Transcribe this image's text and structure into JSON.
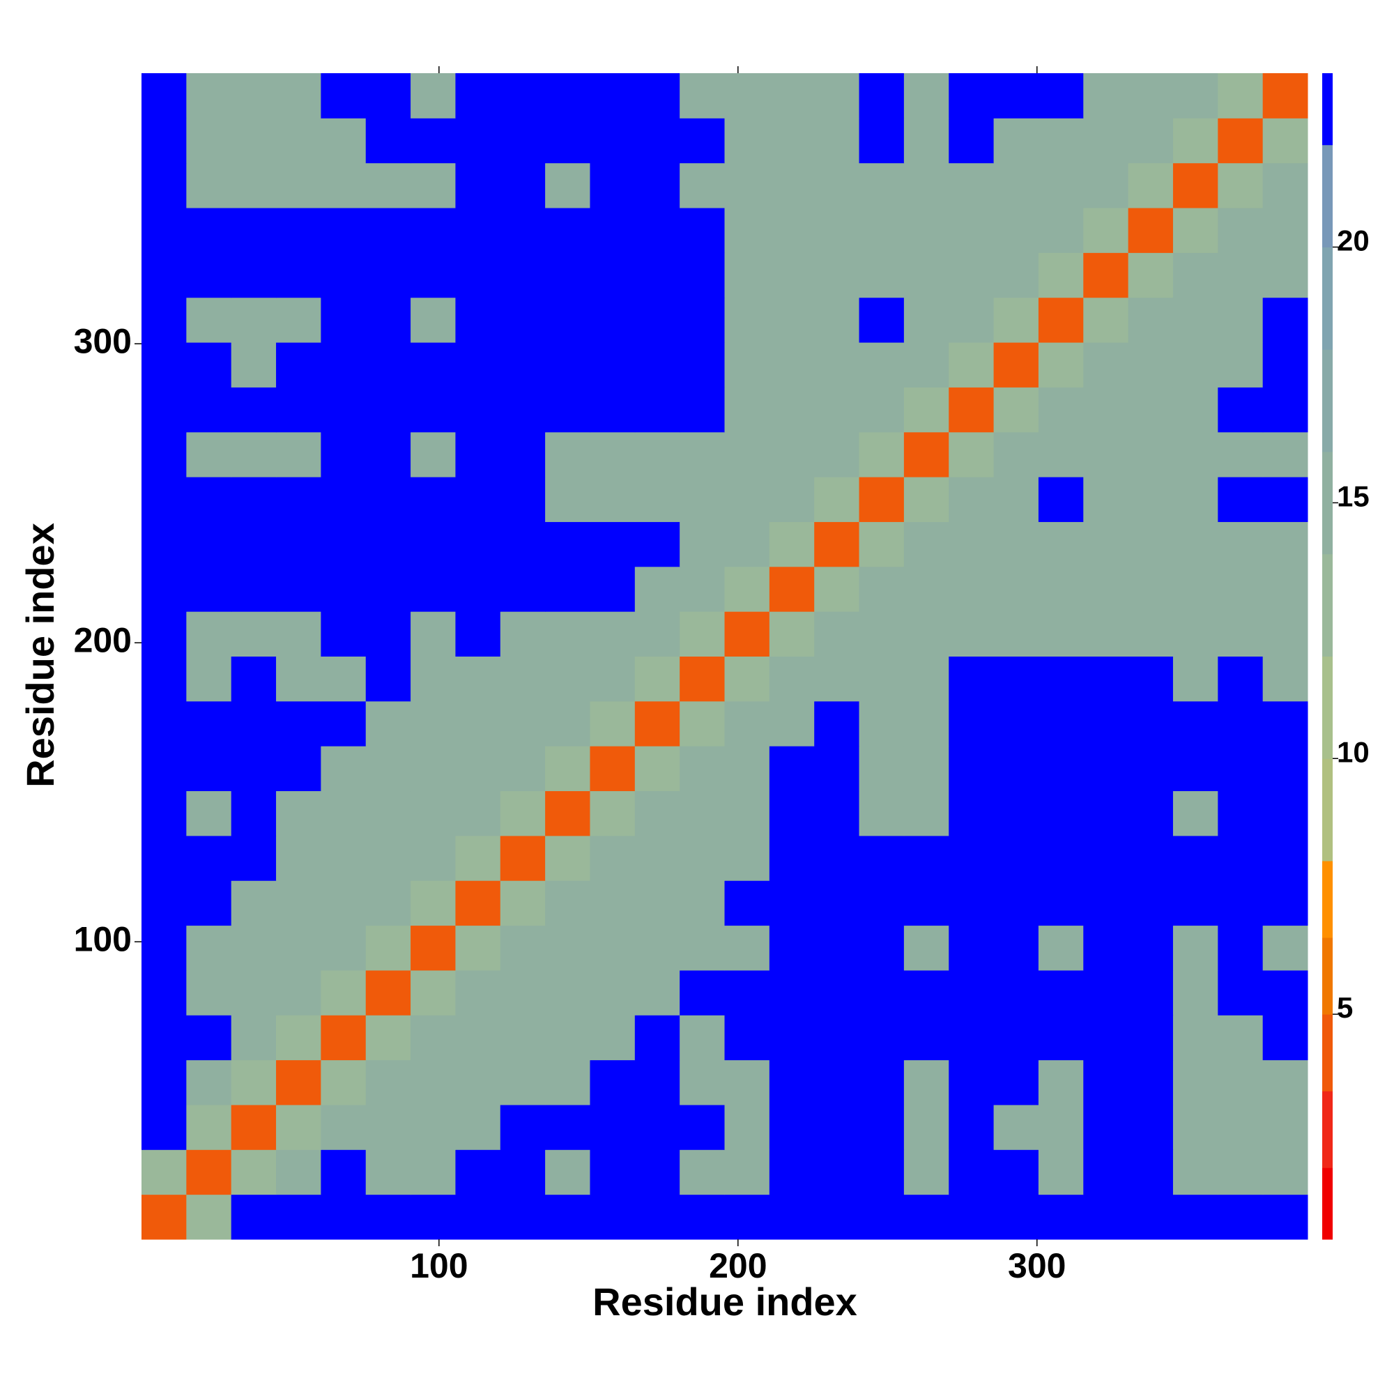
{
  "chart_data": {
    "type": "heatmap",
    "xlabel": "Residue index",
    "ylabel": "Residue index",
    "xlim": [
      0.5,
      390.5
    ],
    "ylim": [
      0.5,
      390.5
    ],
    "xticks": [
      100,
      200,
      300
    ],
    "yticks": [
      100,
      200,
      300
    ],
    "x": [
      8,
      23,
      38,
      53,
      68,
      83,
      98,
      113,
      128,
      143,
      158,
      173,
      188,
      203,
      218,
      233,
      248,
      263,
      278,
      293,
      308,
      323,
      338,
      353,
      368,
      383
    ],
    "y": [
      8,
      23,
      38,
      53,
      68,
      83,
      98,
      113,
      128,
      143,
      158,
      173,
      188,
      203,
      218,
      233,
      248,
      263,
      278,
      293,
      308,
      323,
      338,
      353,
      368,
      383
    ],
    "z": [
      [
        4,
        12,
        23,
        23,
        23,
        23,
        23,
        23,
        23,
        23,
        23,
        23,
        23,
        23,
        23,
        23,
        23,
        23,
        23,
        23,
        23,
        23,
        23,
        23,
        23,
        23
      ],
      [
        12,
        4,
        12,
        15,
        23,
        15,
        15,
        23,
        23,
        15,
        23,
        23,
        15,
        15,
        23,
        23,
        23,
        15,
        23,
        23,
        15,
        23,
        23,
        15,
        15,
        15
      ],
      [
        23,
        12,
        4,
        12,
        15,
        15,
        15,
        15,
        23,
        23,
        23,
        23,
        23,
        15,
        23,
        23,
        23,
        15,
        23,
        15,
        15,
        23,
        23,
        15,
        15,
        15
      ],
      [
        23,
        15,
        12,
        4,
        12,
        15,
        15,
        15,
        15,
        15,
        23,
        23,
        15,
        15,
        23,
        23,
        23,
        15,
        23,
        23,
        15,
        23,
        23,
        15,
        15,
        15
      ],
      [
        23,
        23,
        15,
        12,
        4,
        12,
        15,
        15,
        15,
        15,
        15,
        23,
        15,
        23,
        23,
        23,
        23,
        23,
        23,
        23,
        23,
        23,
        23,
        15,
        15,
        23
      ],
      [
        23,
        15,
        15,
        15,
        12,
        4,
        12,
        15,
        15,
        15,
        15,
        15,
        23,
        23,
        23,
        23,
        23,
        23,
        23,
        23,
        23,
        23,
        23,
        15,
        23,
        23
      ],
      [
        23,
        15,
        15,
        15,
        15,
        12,
        4,
        12,
        15,
        15,
        15,
        15,
        15,
        15,
        23,
        23,
        23,
        15,
        23,
        23,
        15,
        23,
        23,
        15,
        23,
        15
      ],
      [
        23,
        23,
        15,
        15,
        15,
        15,
        12,
        4,
        12,
        15,
        15,
        15,
        15,
        23,
        23,
        23,
        23,
        23,
        23,
        23,
        23,
        23,
        23,
        23,
        23,
        23
      ],
      [
        23,
        23,
        23,
        15,
        15,
        15,
        15,
        12,
        4,
        12,
        15,
        15,
        15,
        15,
        23,
        23,
        23,
        23,
        23,
        23,
        23,
        23,
        23,
        23,
        23,
        23
      ],
      [
        23,
        15,
        23,
        15,
        15,
        15,
        15,
        15,
        12,
        4,
        12,
        15,
        15,
        15,
        23,
        23,
        15,
        15,
        23,
        23,
        23,
        23,
        23,
        15,
        23,
        23
      ],
      [
        23,
        23,
        23,
        23,
        15,
        15,
        15,
        15,
        15,
        12,
        4,
        12,
        15,
        15,
        23,
        23,
        15,
        15,
        23,
        23,
        23,
        23,
        23,
        23,
        23,
        23
      ],
      [
        23,
        23,
        23,
        23,
        23,
        15,
        15,
        15,
        15,
        15,
        12,
        4,
        12,
        15,
        15,
        23,
        15,
        15,
        23,
        23,
        23,
        23,
        23,
        23,
        23,
        23
      ],
      [
        23,
        15,
        23,
        15,
        15,
        23,
        15,
        15,
        15,
        15,
        15,
        12,
        4,
        12,
        15,
        15,
        15,
        15,
        23,
        23,
        23,
        23,
        23,
        15,
        23,
        15
      ],
      [
        23,
        15,
        15,
        15,
        23,
        23,
        15,
        23,
        15,
        15,
        15,
        15,
        12,
        4,
        12,
        15,
        15,
        15,
        15,
        15,
        15,
        15,
        15,
        15,
        15,
        15
      ],
      [
        23,
        23,
        23,
        23,
        23,
        23,
        23,
        23,
        23,
        23,
        23,
        15,
        15,
        12,
        4,
        12,
        15,
        15,
        15,
        15,
        15,
        15,
        15,
        15,
        15,
        15
      ],
      [
        23,
        23,
        23,
        23,
        23,
        23,
        23,
        23,
        23,
        23,
        23,
        23,
        15,
        15,
        12,
        4,
        12,
        15,
        15,
        15,
        15,
        15,
        15,
        15,
        15,
        15
      ],
      [
        23,
        23,
        23,
        23,
        23,
        23,
        23,
        23,
        23,
        15,
        15,
        15,
        15,
        15,
        15,
        12,
        4,
        12,
        15,
        15,
        23,
        15,
        15,
        15,
        23,
        23
      ],
      [
        23,
        15,
        15,
        15,
        23,
        23,
        15,
        23,
        23,
        15,
        15,
        15,
        15,
        15,
        15,
        15,
        12,
        4,
        12,
        15,
        15,
        15,
        15,
        15,
        15,
        15
      ],
      [
        23,
        23,
        23,
        23,
        23,
        23,
        23,
        23,
        23,
        23,
        23,
        23,
        23,
        15,
        15,
        15,
        15,
        12,
        4,
        12,
        15,
        15,
        15,
        15,
        23,
        23
      ],
      [
        23,
        23,
        15,
        23,
        23,
        23,
        23,
        23,
        23,
        23,
        23,
        23,
        23,
        15,
        15,
        15,
        15,
        15,
        12,
        4,
        12,
        15,
        15,
        15,
        15,
        23
      ],
      [
        23,
        15,
        15,
        15,
        23,
        23,
        15,
        23,
        23,
        23,
        23,
        23,
        23,
        15,
        15,
        15,
        23,
        15,
        15,
        12,
        4,
        12,
        15,
        15,
        15,
        23
      ],
      [
        23,
        23,
        23,
        23,
        23,
        23,
        23,
        23,
        23,
        23,
        23,
        23,
        23,
        15,
        15,
        15,
        15,
        15,
        15,
        15,
        12,
        4,
        12,
        15,
        15,
        15
      ],
      [
        23,
        23,
        23,
        23,
        23,
        23,
        23,
        23,
        23,
        23,
        23,
        23,
        23,
        15,
        15,
        15,
        15,
        15,
        15,
        15,
        15,
        12,
        4,
        12,
        15,
        15
      ],
      [
        23,
        15,
        15,
        15,
        15,
        15,
        15,
        23,
        23,
        15,
        23,
        23,
        15,
        15,
        15,
        15,
        15,
        15,
        15,
        15,
        15,
        15,
        12,
        4,
        12,
        15
      ],
      [
        23,
        15,
        15,
        15,
        15,
        23,
        23,
        23,
        23,
        23,
        23,
        23,
        23,
        15,
        15,
        15,
        23,
        15,
        23,
        15,
        15,
        15,
        15,
        12,
        4,
        12
      ],
      [
        23,
        15,
        15,
        15,
        23,
        23,
        15,
        23,
        23,
        23,
        23,
        23,
        15,
        15,
        15,
        15,
        23,
        15,
        23,
        23,
        23,
        15,
        15,
        15,
        12,
        4
      ]
    ],
    "zlim": [
      0.6,
      23.4
    ],
    "zticks": [
      5,
      10,
      15,
      20
    ],
    "levels": [
      0.6,
      2,
      3.5,
      5,
      6.5,
      8,
      10,
      12,
      14,
      16,
      18,
      20,
      22,
      23.4
    ],
    "level_colors": [
      "#f00000",
      "#f02818",
      "#f05a0a",
      "#f07800",
      "#ff9000",
      "#b0c080",
      "#a8c08c",
      "#9ab89a",
      "#90b0a0",
      "#88aaa8",
      "#80a4b0",
      "#7898b8",
      "#0000ff"
    ]
  }
}
